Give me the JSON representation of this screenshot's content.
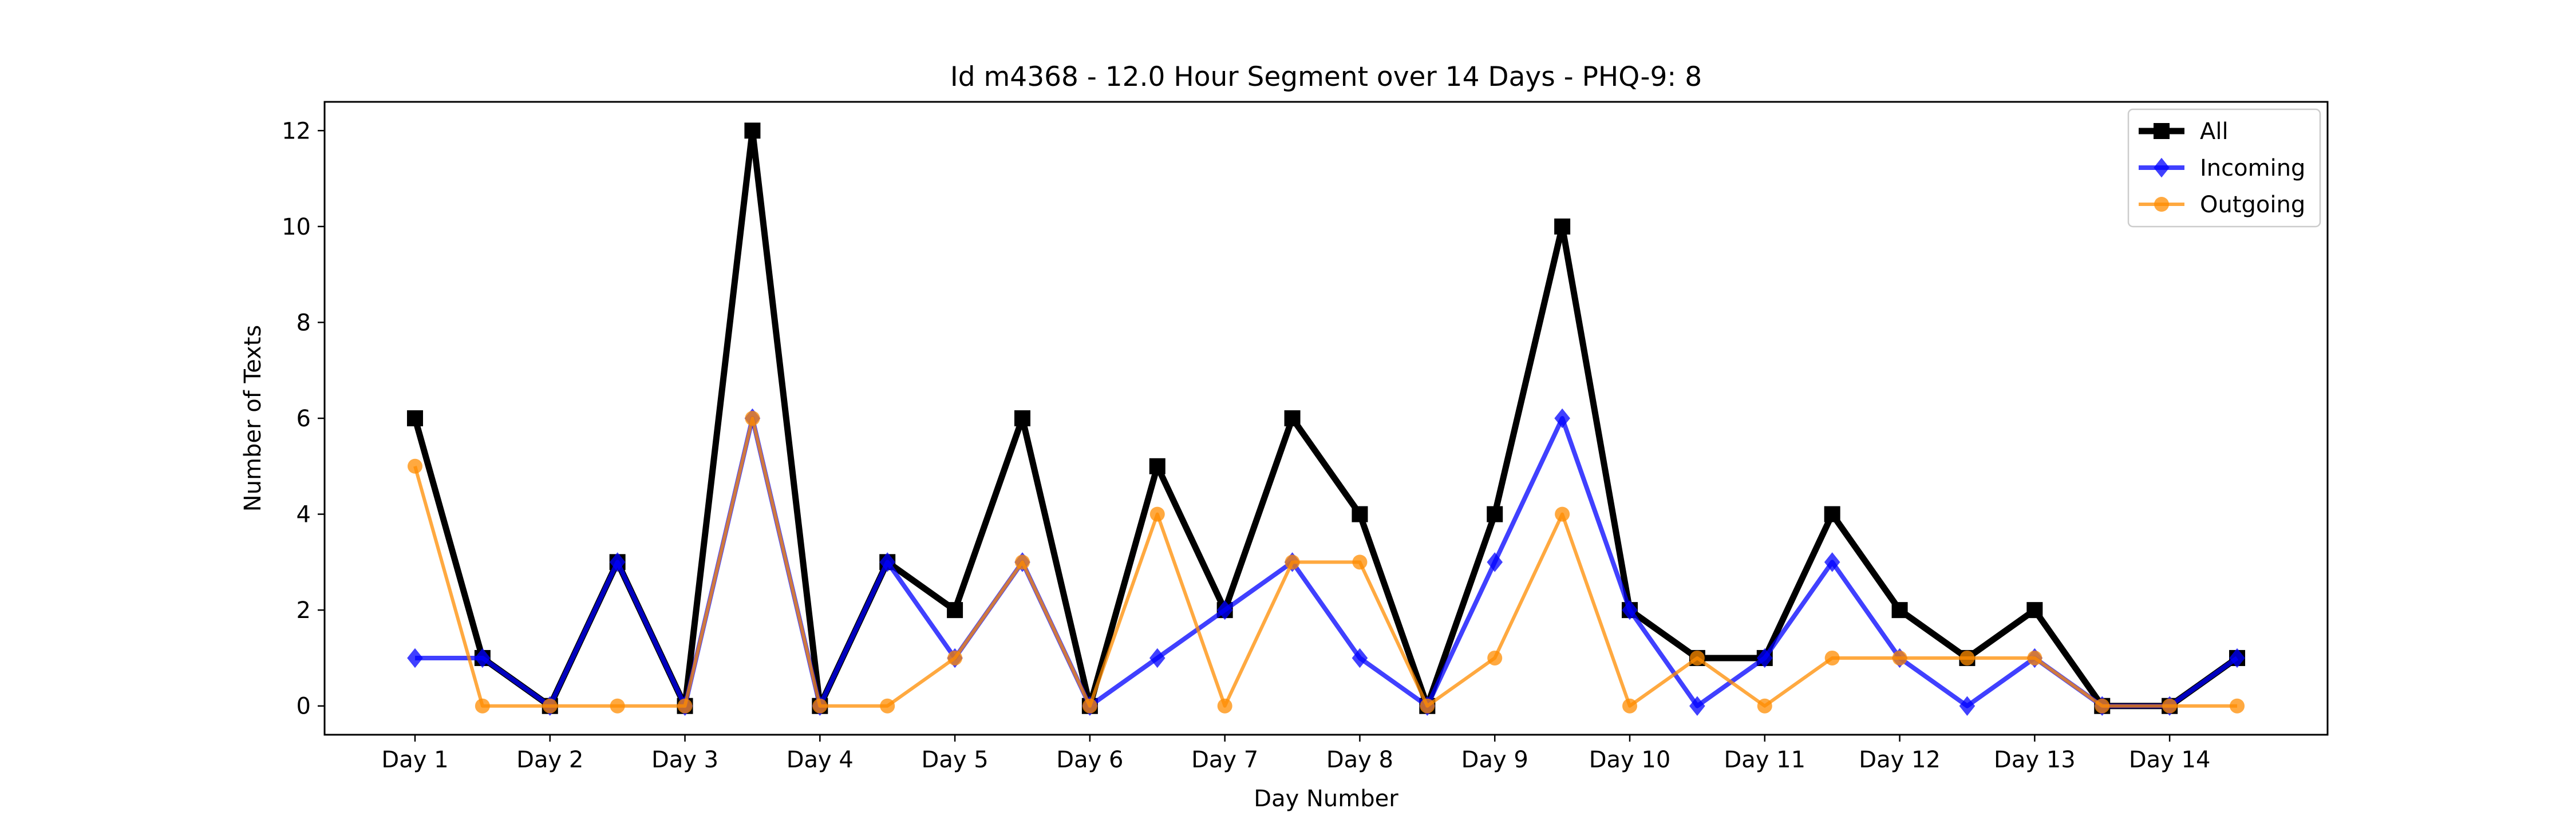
{
  "chart_data": {
    "type": "line",
    "title": "Id m4368 - 12.0 Hour Segment over 14 Days - PHQ-9: 8",
    "xlabel": "Day Number",
    "ylabel": "Number of Texts",
    "x": [
      0,
      0.5,
      1,
      1.5,
      2,
      2.5,
      3,
      3.5,
      4,
      4.5,
      5,
      5.5,
      6,
      6.5,
      7,
      7.5,
      8,
      8.5,
      9,
      9.5,
      10,
      10.5,
      11,
      11.5,
      12,
      12.5,
      13,
      13.5
    ],
    "xticks": [
      0,
      1,
      2,
      3,
      4,
      5,
      6,
      7,
      8,
      9,
      10,
      11,
      12,
      13
    ],
    "xtick_labels": [
      "Day 1",
      "Day 2",
      "Day 3",
      "Day 4",
      "Day 5",
      "Day 6",
      "Day 7",
      "Day 8",
      "Day 9",
      "Day 10",
      "Day 11",
      "Day 12",
      "Day 13",
      "Day 14"
    ],
    "xlim": [
      -0.67,
      14.17
    ],
    "yticks": [
      0,
      2,
      4,
      6,
      8,
      10,
      12
    ],
    "ylim": [
      -0.6,
      12.6
    ],
    "grid": false,
    "legend_position": "top-right",
    "series": [
      {
        "name": "All",
        "color": "#000000",
        "marker": "square",
        "values": [
          6,
          1,
          0,
          3,
          0,
          12,
          0,
          3,
          2,
          6,
          0,
          5,
          2,
          6,
          4,
          0,
          4,
          10,
          2,
          1,
          1,
          4,
          2,
          1,
          2,
          0,
          0,
          1
        ]
      },
      {
        "name": "Incoming",
        "color": "#0000ff",
        "marker": "diamond",
        "values": [
          1,
          1,
          0,
          3,
          0,
          6,
          0,
          3,
          1,
          3,
          0,
          1,
          2,
          3,
          1,
          0,
          3,
          6,
          2,
          0,
          1,
          3,
          1,
          0,
          1,
          0,
          0,
          1
        ]
      },
      {
        "name": "Outgoing",
        "color": "#ff8c00",
        "marker": "circle",
        "values": [
          5,
          0,
          0,
          0,
          0,
          6,
          0,
          0,
          1,
          3,
          0,
          4,
          0,
          3,
          3,
          0,
          1,
          4,
          0,
          1,
          0,
          1,
          1,
          1,
          1,
          0,
          0,
          0
        ]
      }
    ]
  }
}
